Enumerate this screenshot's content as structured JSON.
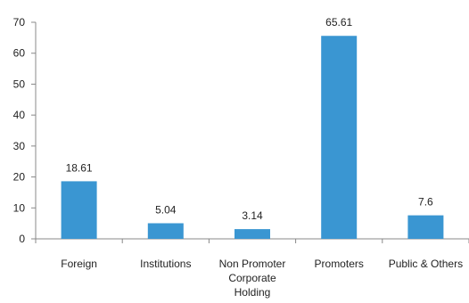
{
  "chart_data": {
    "type": "bar",
    "title": "",
    "xlabel": "",
    "ylabel": "",
    "categories": [
      [
        "Foreign"
      ],
      [
        "Institutions"
      ],
      [
        "Non Promoter",
        "Corporate",
        "Holding"
      ],
      [
        "Promoters"
      ],
      [
        "Public & Others"
      ]
    ],
    "values": [
      18.61,
      5.04,
      3.14,
      65.61,
      7.6
    ],
    "data_labels": [
      "18.61",
      "5.04",
      "3.14",
      "65.61",
      "7.6"
    ],
    "ylim": [
      0,
      70
    ],
    "yticks": [
      "0",
      "10",
      "20",
      "30",
      "40",
      "50",
      "60",
      "70"
    ],
    "grid": false,
    "legend": "none",
    "bar_color": "#3A96D2"
  }
}
